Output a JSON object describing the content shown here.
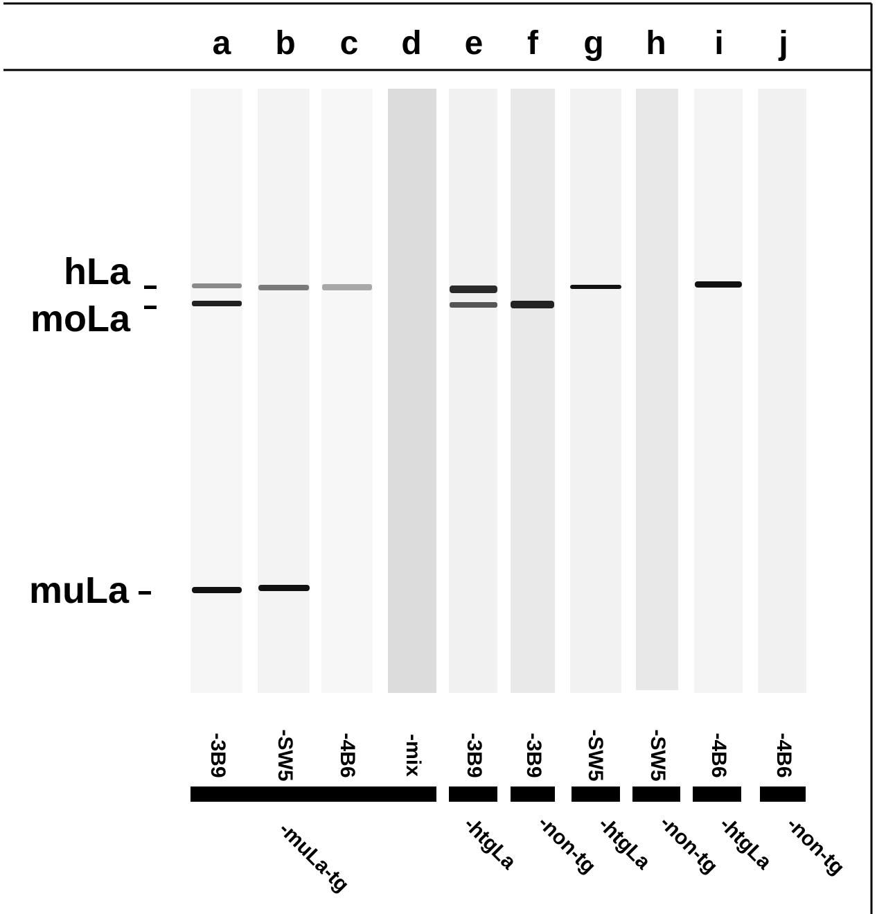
{
  "lanes": [
    {
      "letter": "a",
      "antibody": "-3B9"
    },
    {
      "letter": "b",
      "antibody": "-SW5"
    },
    {
      "letter": "c",
      "antibody": "-4B6"
    },
    {
      "letter": "d",
      "antibody": "-mix"
    },
    {
      "letter": "e",
      "antibody": "-3B9"
    },
    {
      "letter": "f",
      "antibody": "-3B9"
    },
    {
      "letter": "g",
      "antibody": "-SW5"
    },
    {
      "letter": "h",
      "antibody": "-SW5"
    },
    {
      "letter": "i",
      "antibody": "-4B6"
    },
    {
      "letter": "j",
      "antibody": "-4B6"
    }
  ],
  "groups": [
    "-muLa-tg",
    "-htgLa",
    "-non-tg",
    "-htgLa",
    "-non-tg",
    "-htgLa",
    "-non-tg"
  ],
  "markers": [
    "hLa",
    "moLa",
    "muLa"
  ]
}
